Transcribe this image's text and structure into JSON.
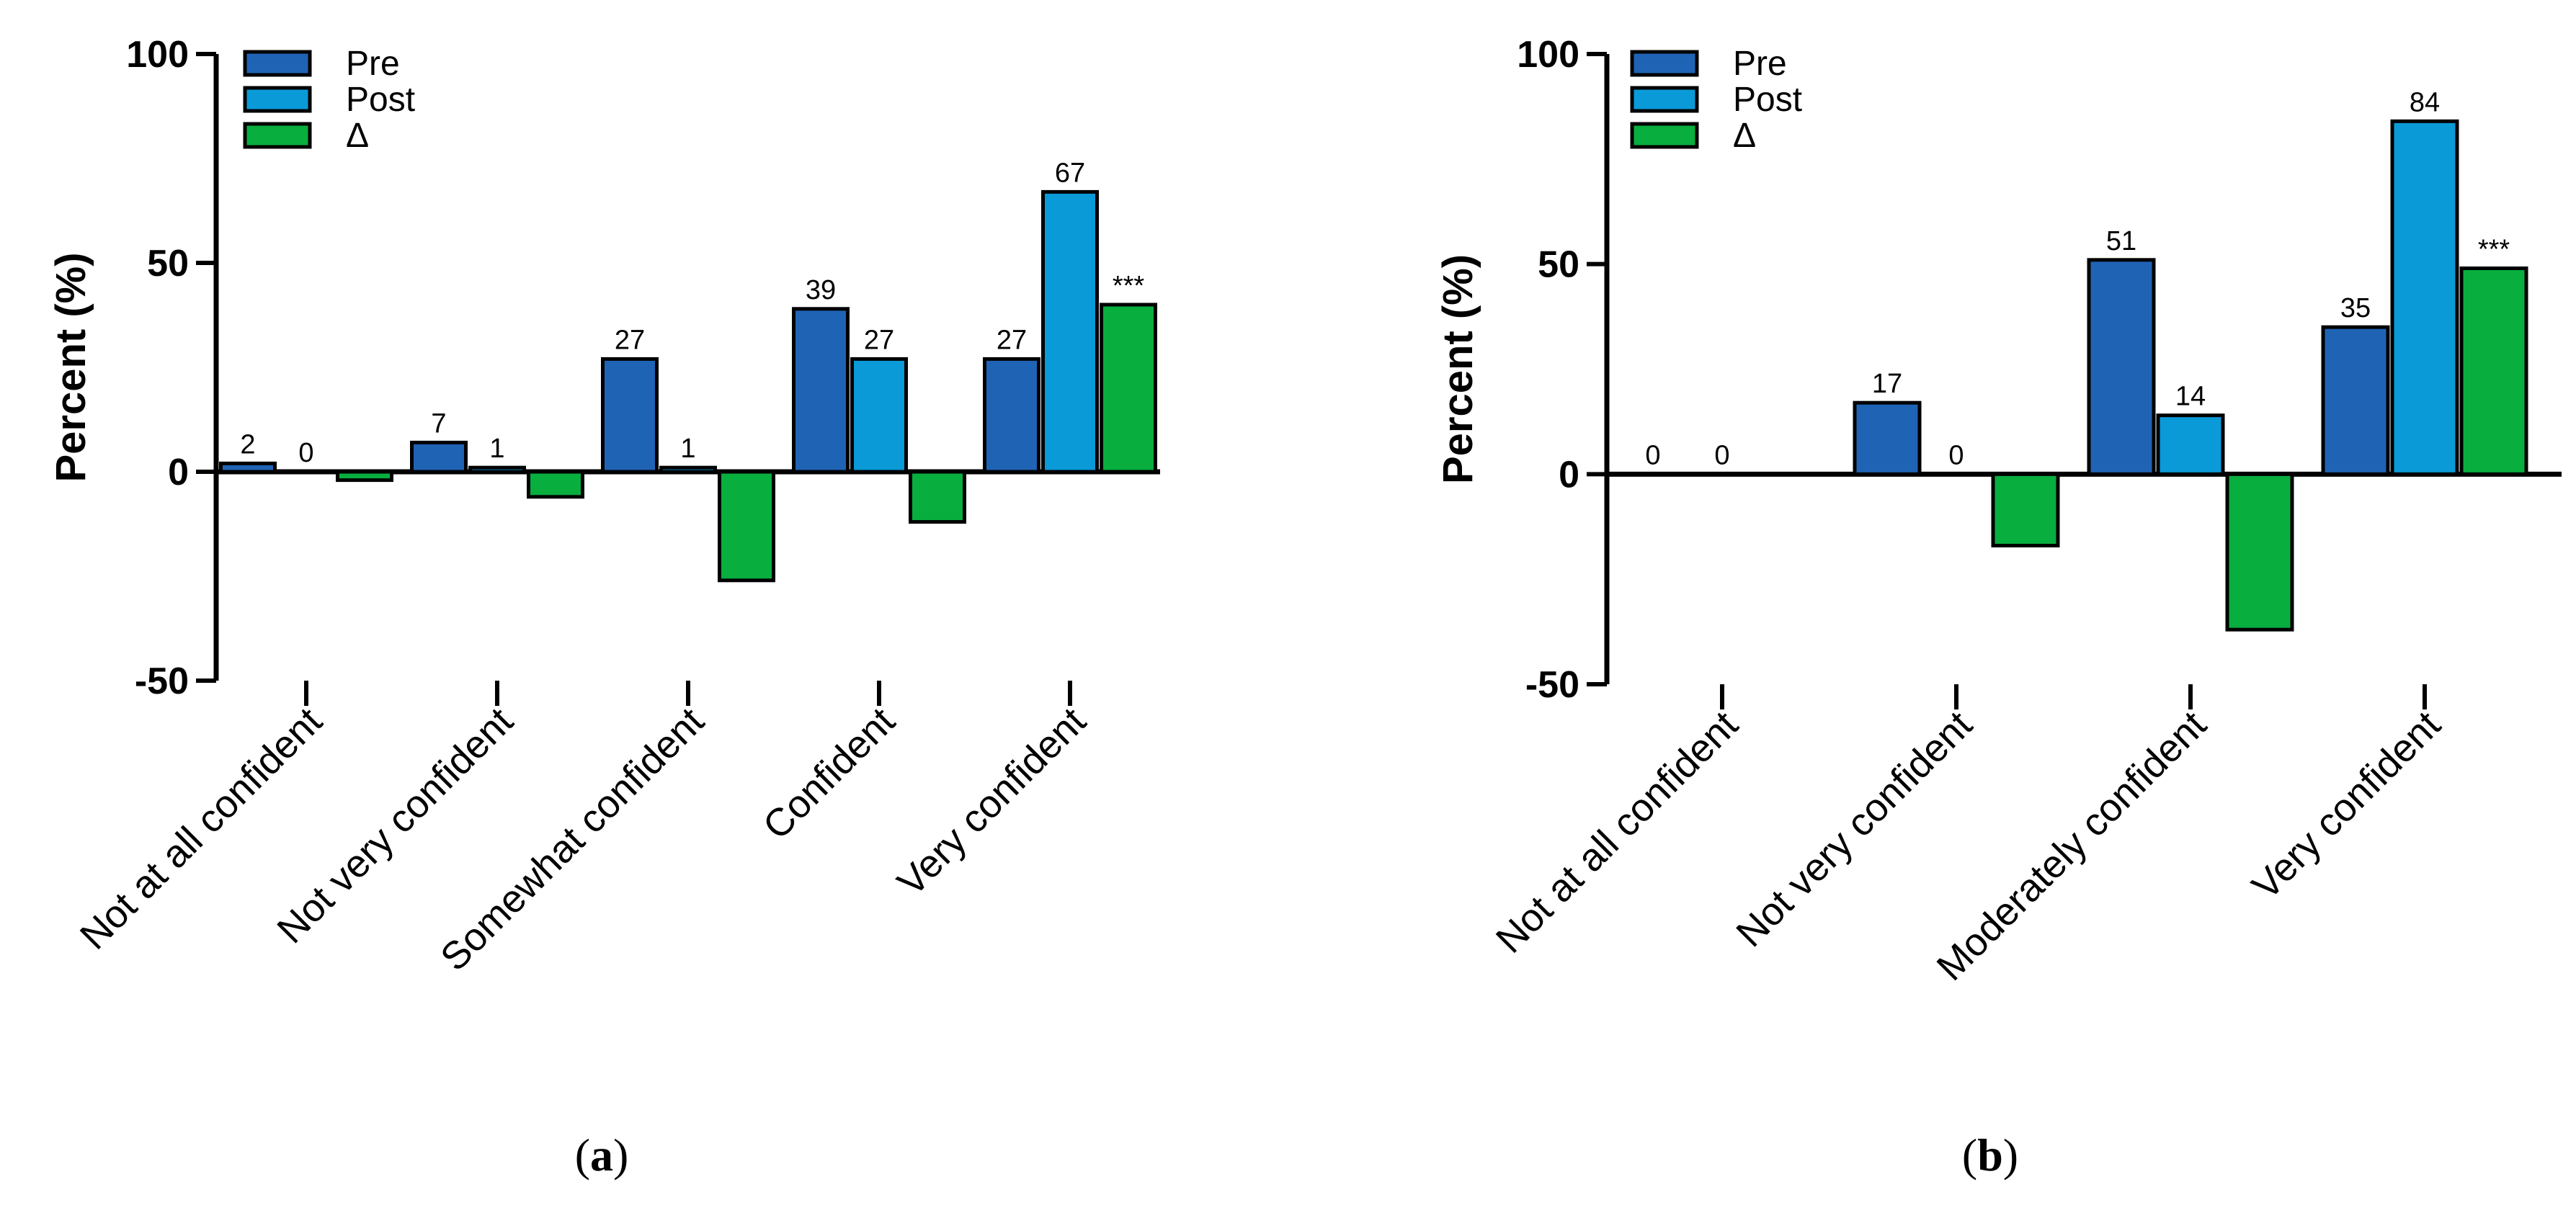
{
  "chart_data": [
    {
      "type": "bar",
      "panel": "a",
      "ylabel": "Percent (%)",
      "xlabel": "",
      "ylim": [
        -50,
        100
      ],
      "yticks": [
        "100",
        "50",
        "0",
        "-50"
      ],
      "legend": {
        "placement": "top-left",
        "entries": [
          "Pre",
          "Post",
          "Δ"
        ]
      },
      "categories": [
        "Not at all confident",
        "Not very confident",
        "Somewhat confident",
        "Confident",
        "Very confident"
      ],
      "series": [
        {
          "name": "Pre",
          "color": "#1f63b5",
          "values": [
            2,
            7,
            27,
            39,
            27
          ],
          "labels": [
            "2",
            "7",
            "27",
            "39",
            "27"
          ]
        },
        {
          "name": "Post",
          "color": "#0a9ad8",
          "values": [
            0,
            1,
            1,
            27,
            67
          ],
          "labels": [
            "0",
            "1",
            "1",
            "27",
            "67"
          ]
        },
        {
          "name": "Δ",
          "color": "#08ae3e",
          "values": [
            -2,
            -6,
            -26,
            -12,
            40
          ],
          "labels": [
            "",
            "",
            "",
            "",
            "***"
          ]
        }
      ]
    },
    {
      "type": "bar",
      "panel": "b",
      "ylabel": "Percent (%)",
      "xlabel": "",
      "ylim": [
        -50,
        100
      ],
      "yticks": [
        "100",
        "50",
        "0",
        "-50"
      ],
      "legend": {
        "placement": "top-left",
        "entries": [
          "Pre",
          "Post",
          "Δ"
        ]
      },
      "categories": [
        "Not at all confident",
        "Not very confident",
        "Moderately confident",
        "Very confident"
      ],
      "series": [
        {
          "name": "Pre",
          "color": "#1f63b5",
          "values": [
            0,
            17,
            51,
            35
          ],
          "labels": [
            "0",
            "17",
            "51",
            "35"
          ]
        },
        {
          "name": "Post",
          "color": "#0a9ad8",
          "values": [
            0,
            0,
            14,
            84
          ],
          "labels": [
            "0",
            "0",
            "14",
            "84"
          ]
        },
        {
          "name": "Δ",
          "color": "#08ae3e",
          "values": [
            0,
            -17,
            -37,
            49
          ],
          "labels": [
            "",
            "",
            "",
            "***"
          ]
        }
      ]
    }
  ],
  "captions": [
    {
      "open": "(",
      "letter": "a",
      "close": ")"
    },
    {
      "open": "(",
      "letter": "b",
      "close": ")"
    }
  ]
}
